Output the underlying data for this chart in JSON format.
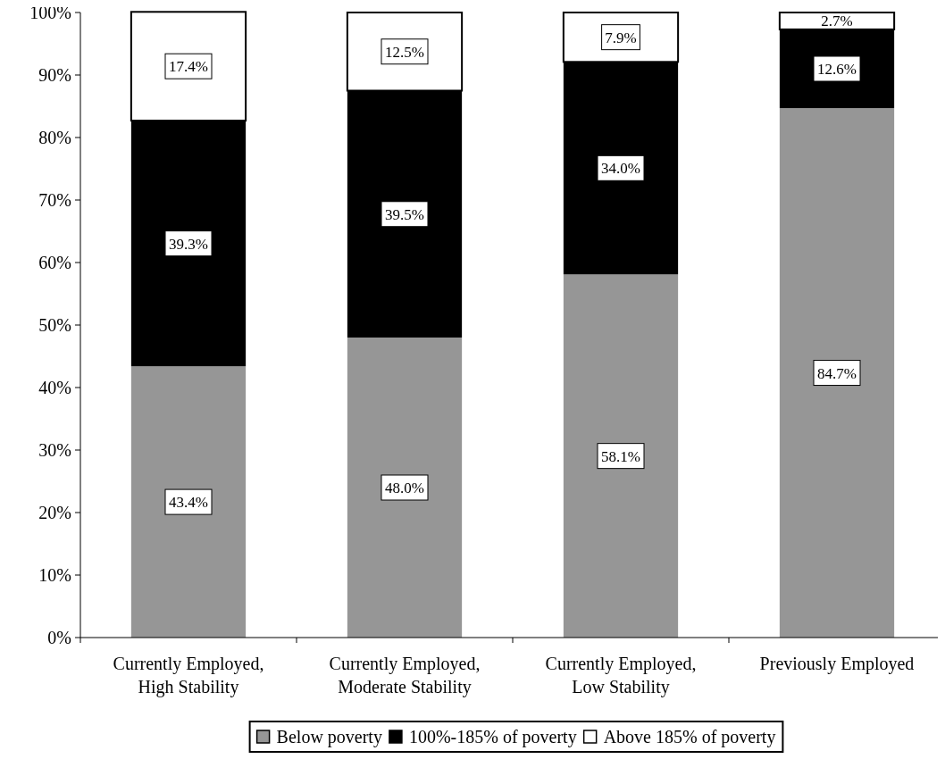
{
  "chart_data": {
    "type": "bar",
    "stacked": true,
    "categories": [
      "Currently Employed, High Stability",
      "Currently Employed, Moderate Stability",
      "Currently Employed, Low Stability",
      "Previously Employed"
    ],
    "series": [
      {
        "name": "Below poverty",
        "color": "#969696",
        "values": [
          43.4,
          48.0,
          58.1,
          84.7
        ]
      },
      {
        "name": "100%-185% of poverty",
        "color": "#000000",
        "values": [
          39.3,
          39.5,
          34.0,
          12.6
        ]
      },
      {
        "name": "Above 185% of poverty",
        "color": "#ffffff",
        "values": [
          17.4,
          12.5,
          7.9,
          2.7
        ]
      }
    ],
    "value_labels": [
      [
        "43.4%",
        "48.0%",
        "58.1%",
        "84.7%"
      ],
      [
        "39.3%",
        "39.5%",
        "34.0%",
        "12.6%"
      ],
      [
        "17.4%",
        "12.5%",
        "7.9%",
        "2.7%"
      ]
    ],
    "ylim": [
      0,
      100
    ],
    "yticks": [
      {
        "value": 0,
        "label": "0%"
      },
      {
        "value": 10,
        "label": "10%"
      },
      {
        "value": 20,
        "label": "20%"
      },
      {
        "value": 30,
        "label": "30%"
      },
      {
        "value": 40,
        "label": "40%"
      },
      {
        "value": 50,
        "label": "50%"
      },
      {
        "value": 60,
        "label": "60%"
      },
      {
        "value": 70,
        "label": "70%"
      },
      {
        "value": 80,
        "label": "80%"
      },
      {
        "value": 90,
        "label": "90%"
      },
      {
        "value": 100,
        "label": "100%"
      }
    ],
    "grid": false,
    "legend": "bottom"
  }
}
